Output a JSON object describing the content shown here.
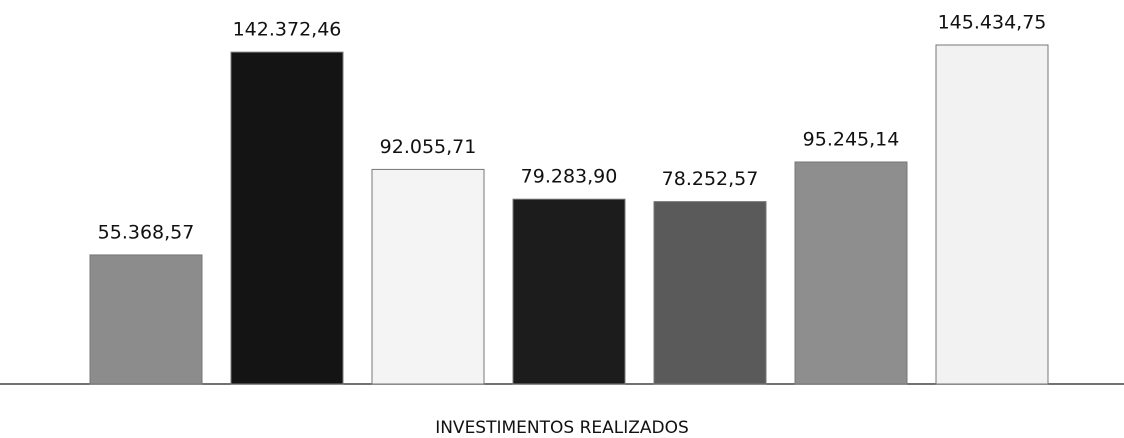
{
  "chart_data": {
    "type": "bar",
    "x_label": "INVESTIMENTOS REALIZADOS",
    "categories": [
      null,
      null,
      null,
      null,
      null,
      null,
      null
    ],
    "values": [
      55368.57,
      142372.46,
      92055.71,
      79283.9,
      78252.57,
      95245.14,
      145434.75
    ],
    "value_labels": [
      "55.368,57",
      "142.372,46",
      "92.055,71",
      "79.283,90",
      "78.252,57",
      "95.245,14",
      "145.434,75"
    ],
    "colors": [
      "#8c8c8c",
      "#141414",
      "#f4f4f4",
      "#1c1c1c",
      "#5a5a5a",
      "#8e8e8e",
      "#f2f2f2"
    ]
  }
}
